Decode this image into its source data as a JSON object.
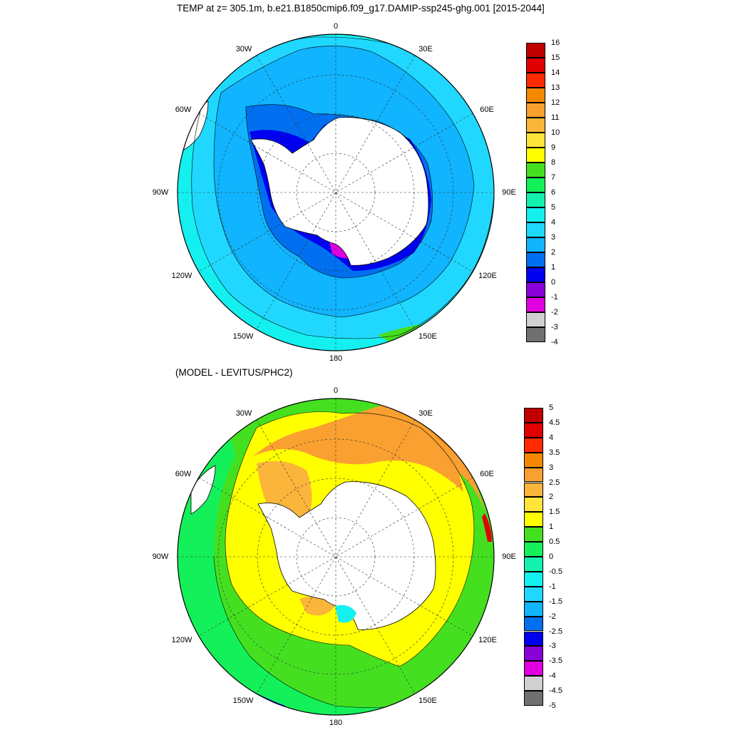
{
  "top_map": {
    "title": "TEMP at z= 305.1m, b.e21.B1850cmip6.f09_g17.DAMIP-ssp245-ghg.001 [2015-2044]",
    "longitude_labels": [
      "0",
      "30E",
      "60E",
      "90E",
      "120E",
      "150E",
      "180",
      "150W",
      "120W",
      "90W",
      "60W",
      "30W"
    ],
    "colorbar": {
      "labels": [
        "16",
        "15",
        "14",
        "13",
        "12",
        "11",
        "10",
        "9",
        "8",
        "7",
        "6",
        "5",
        "4",
        "3",
        "2",
        "1",
        "0",
        "-1",
        "-2",
        "-3",
        "-4"
      ],
      "colors": [
        "#c00000",
        "#e00000",
        "#ff2a00",
        "#f58800",
        "#f9a030",
        "#fbb53a",
        "#ffe43a",
        "#ffff00",
        "#44e020",
        "#14f05a",
        "#14f0b0",
        "#14f0f0",
        "#20d8ff",
        "#10b4ff",
        "#0070f0",
        "#0000f0",
        "#8a00d8",
        "#e000e0",
        "#d0d0d0",
        "#707070"
      ]
    }
  },
  "bottom_map": {
    "title": "(MODEL - LEVITUS/PHC2)",
    "longitude_labels": [
      "0",
      "30E",
      "60E",
      "90E",
      "120E",
      "150E",
      "180",
      "150W",
      "120W",
      "90W",
      "60W",
      "30W"
    ],
    "colorbar": {
      "labels": [
        "5",
        "4.5",
        "4",
        "3.5",
        "3",
        "2.5",
        "2",
        "1.5",
        "1",
        "0.5",
        "0",
        "-0.5",
        "-1",
        "-1.5",
        "-2",
        "-2.5",
        "-3",
        "-3.5",
        "-4",
        "-4.5",
        "-5"
      ],
      "colors": [
        "#c00000",
        "#e00000",
        "#ff2a00",
        "#f58800",
        "#f9a030",
        "#fbb53a",
        "#ffe43a",
        "#ffff00",
        "#44e020",
        "#14f05a",
        "#14f0b0",
        "#14f0f0",
        "#20d8ff",
        "#10b4ff",
        "#0070f0",
        "#0000f0",
        "#8a00d8",
        "#e000e0",
        "#d0d0d0",
        "#707070"
      ]
    }
  }
}
